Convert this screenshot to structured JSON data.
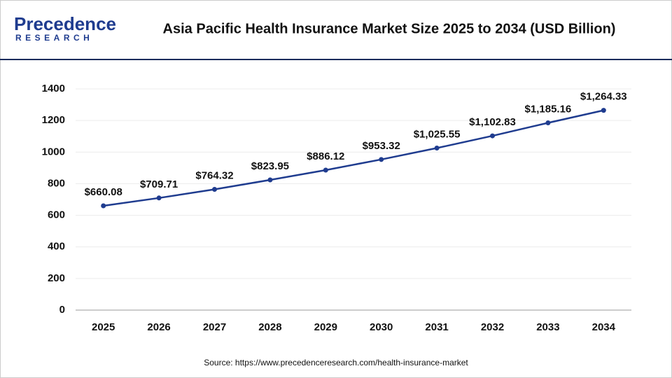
{
  "logo": {
    "name": "Precedence",
    "tagline": "RESEARCH"
  },
  "chart_data": {
    "type": "line",
    "title": "Asia Pacific Health Insurance Market Size 2025 to 2034 (USD Billion)",
    "source": "Source: https://www.precedenceresearch.com/health-insurance-market",
    "categories": [
      "2025",
      "2026",
      "2027",
      "2028",
      "2029",
      "2030",
      "2031",
      "2032",
      "2033",
      "2034"
    ],
    "series": [
      {
        "color": "#1f3c8f",
        "values": [
          660.08,
          709.71,
          764.32,
          823.95,
          886.12,
          953.32,
          1025.55,
          1102.83,
          1185.16,
          1264.33
        ],
        "value_labels": [
          "$660.08",
          "$709.71",
          "$764.32",
          "$823.95",
          "$886.12",
          "$953.32",
          "$1,025.55",
          "$1,102.83",
          "$1,185.16",
          "$1,264.33"
        ]
      }
    ],
    "ylim": [
      0,
      1400
    ],
    "yticks": [
      0,
      200,
      400,
      600,
      800,
      1000,
      1200,
      1400
    ],
    "grid": true
  }
}
